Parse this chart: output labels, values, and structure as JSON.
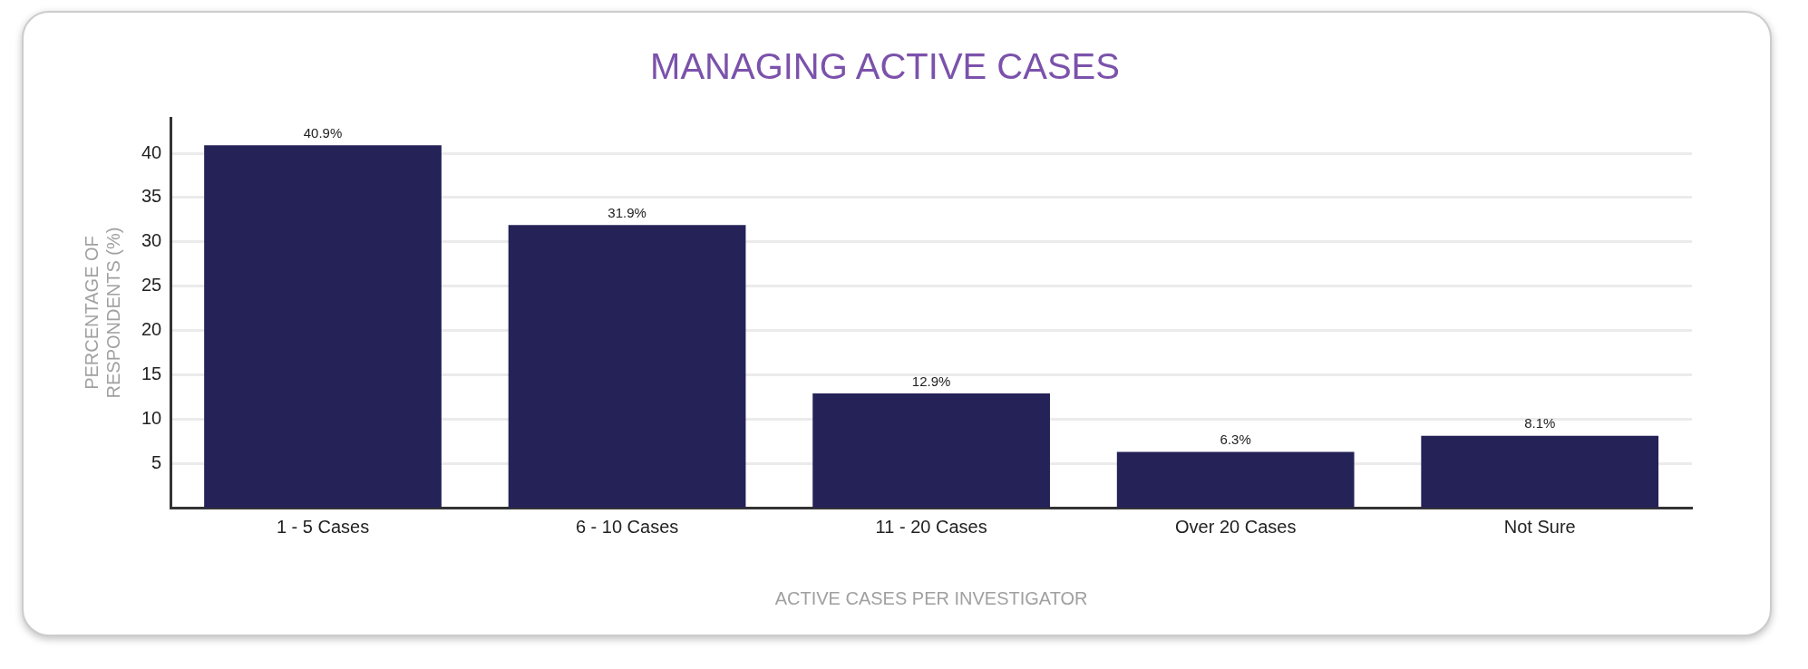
{
  "chart_data": {
    "type": "bar",
    "title": "MANAGING ACTIVE CASES",
    "xlabel": "ACTIVE CASES PER INVESTIGATOR",
    "ylabel": "PERCENTAGE OF RESPONDENTS (%)",
    "categories": [
      "1 - 5 Cases",
      "6 - 10 Cases",
      "11 - 20 Cases",
      "Over 20 Cases",
      "Not Sure"
    ],
    "values": [
      40.9,
      31.9,
      12.9,
      6.3,
      8.1
    ],
    "value_labels": [
      "40.9%",
      "31.9%",
      "12.9%",
      "6.3%",
      "8.1%"
    ],
    "color": "#252258",
    "ylim": [
      0,
      44
    ],
    "yticks": [
      5,
      10,
      15,
      20,
      25,
      30,
      35,
      40
    ],
    "grid": "y",
    "legend": false
  }
}
